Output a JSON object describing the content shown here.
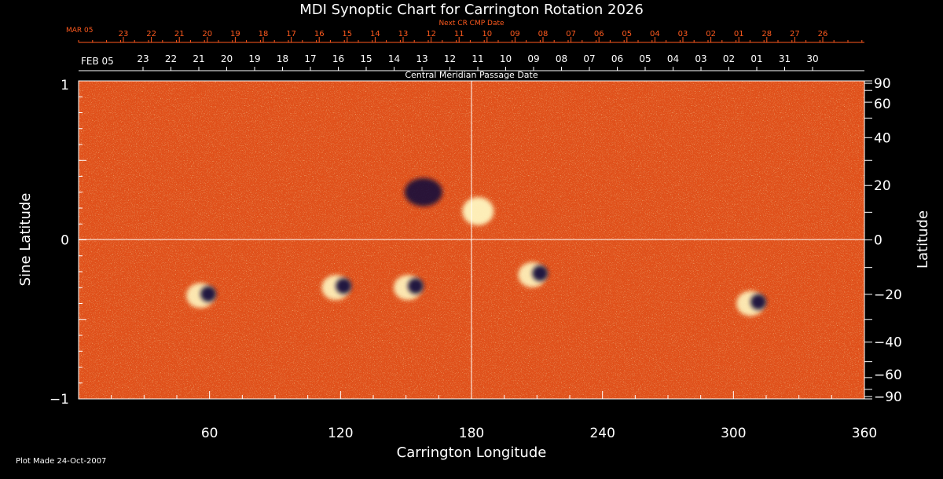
{
  "chart_data": {
    "type": "heatmap",
    "title": "MDI Synoptic Chart for Carrington Rotation 2026",
    "xlabel": "Carrington Longitude",
    "ylabel_left": "Sine Latitude",
    "ylabel_right": "Latitude",
    "xlim": [
      0,
      360
    ],
    "ylim": [
      -1,
      1
    ],
    "x_ticks": [
      "60",
      "120",
      "180",
      "240",
      "300",
      "360"
    ],
    "y_left_ticks": [
      "1",
      "0",
      "−1"
    ],
    "y_right_ticks": [
      "90",
      "60",
      "40",
      "20",
      "0",
      "−20",
      "−40",
      "−60",
      "−90"
    ],
    "top_axis_label": "Central Meridian Passage Date",
    "top_start_label": "FEB 05",
    "top_dates": [
      "23",
      "22",
      "21",
      "20",
      "19",
      "18",
      "17",
      "16",
      "15",
      "14",
      "13",
      "12",
      "11",
      "10",
      "09",
      "08",
      "07",
      "06",
      "05",
      "04",
      "03",
      "02",
      "01",
      "31",
      "30"
    ],
    "next_cr_label": "Next CR CMP Date",
    "next_start_label": "MAR 05",
    "next_dates": [
      "23",
      "22",
      "21",
      "20",
      "19",
      "18",
      "17",
      "16",
      "15",
      "14",
      "13",
      "12",
      "11",
      "10",
      "09",
      "08",
      "07",
      "06",
      "05",
      "04",
      "03",
      "02",
      "01",
      "28",
      "27",
      "26"
    ],
    "footer": "Plot Made 24-Oct-2007",
    "colors": {
      "background": "#000000",
      "field": "#e0501a",
      "positive": "#fff6c0",
      "negative": "#14103a",
      "next_cr_text": "#ff5a1e"
    },
    "active_regions": [
      {
        "lon": 158,
        "sinlat": 0.3,
        "polarity": "negative"
      },
      {
        "lon": 183,
        "sinlat": 0.18,
        "polarity": "positive"
      },
      {
        "lon": 120,
        "sinlat": -0.3,
        "polarity": "mixed"
      },
      {
        "lon": 153,
        "sinlat": -0.3,
        "polarity": "mixed"
      },
      {
        "lon": 210,
        "sinlat": -0.22,
        "polarity": "mixed"
      },
      {
        "lon": 58,
        "sinlat": -0.35,
        "polarity": "mixed"
      },
      {
        "lon": 310,
        "sinlat": -0.4,
        "polarity": "mixed"
      }
    ]
  }
}
